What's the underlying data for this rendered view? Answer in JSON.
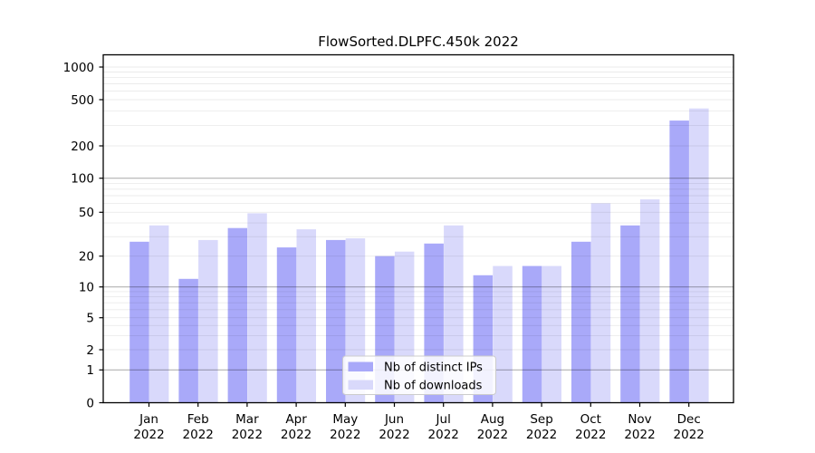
{
  "title": "FlowSorted.DLPFC.450k 2022",
  "chart_data": {
    "type": "bar",
    "title": "FlowSorted.DLPFC.450k 2022",
    "yscale": "symlog",
    "grid": "on",
    "legend_position": "lower center",
    "xlabel": "",
    "ylabel": "",
    "categories": [
      "Jan 2022",
      "Feb 2022",
      "Mar 2022",
      "Apr 2022",
      "May 2022",
      "Jun 2022",
      "Jul 2022",
      "Aug 2022",
      "Sep 2022",
      "Oct 2022",
      "Nov 2022",
      "Dec 2022"
    ],
    "yticks": [
      0,
      1,
      2,
      5,
      10,
      20,
      50,
      100,
      200,
      500,
      1000
    ],
    "ylim": [
      0,
      1150
    ],
    "series": [
      {
        "name": "Nb of distinct IPs",
        "color": "#a9a9f9",
        "values": [
          27,
          12,
          36,
          24,
          28,
          20,
          26,
          13,
          16,
          27,
          38,
          330
        ]
      },
      {
        "name": "Nb of downloads",
        "color": "#d9d9fb",
        "values": [
          38,
          28,
          49,
          35,
          29,
          22,
          38,
          16,
          16,
          60,
          65,
          420
        ]
      }
    ]
  },
  "colors": {
    "major_gridline": "rgba(0,0,0,0.30)",
    "minor_gridline": "rgba(0,0,0,0.08)",
    "axis": "#000000",
    "legend_border": "#cccccc",
    "legend_background": "rgba(255,255,255,0.85)"
  }
}
